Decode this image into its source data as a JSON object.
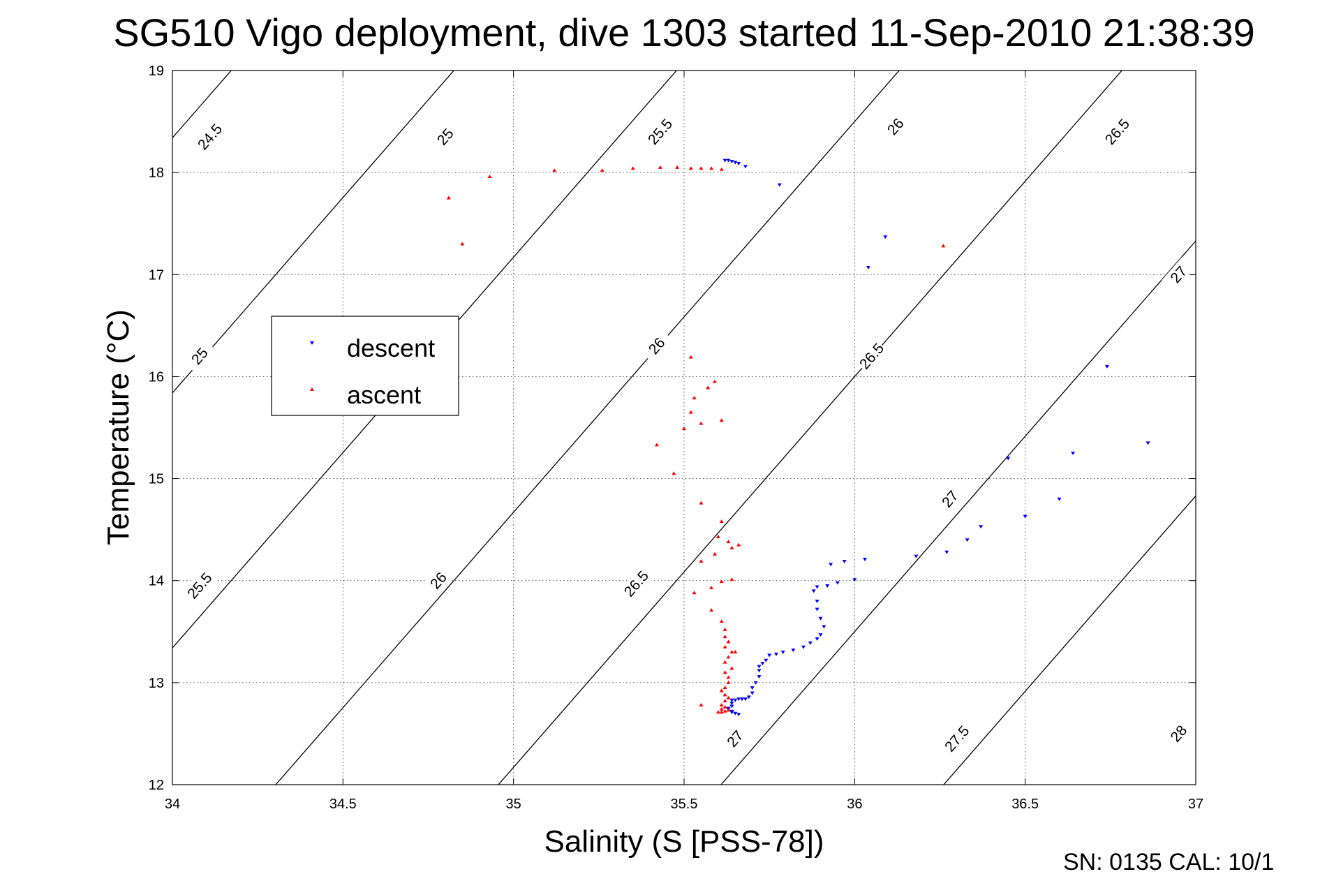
{
  "chart_data": {
    "type": "scatter",
    "title": "SG510 Vigo deployment, dive 1303 started 11-Sep-2010 21:38:39",
    "xlabel": "Salinity (S [PSS-78])",
    "ylabel": "Temperature (°C)",
    "xlim": [
      34,
      37
    ],
    "ylim": [
      12,
      19
    ],
    "x_ticks": [
      "34",
      "34.5",
      "35",
      "35.5",
      "36",
      "36.5",
      "37"
    ],
    "y_ticks": [
      "12",
      "13",
      "14",
      "15",
      "16",
      "17",
      "18",
      "19"
    ],
    "grid": true,
    "legend_position": "left-middle",
    "footer_text": "SN: 0135  CAL: 10/1",
    "density_contours": [
      {
        "sigma": 24.5,
        "labels": [
          {
            "text": "24.5",
            "s": 34.11,
            "t": 18.35
          }
        ]
      },
      {
        "sigma": 25,
        "labels": [
          {
            "text": "25",
            "s": 34.8,
            "t": 18.35
          },
          {
            "text": "25",
            "s": 34.08,
            "t": 16.2
          }
        ]
      },
      {
        "sigma": 25.5,
        "labels": [
          {
            "text": "25.5",
            "s": 35.43,
            "t": 18.4
          },
          {
            "text": "25.5",
            "s": 34.08,
            "t": 13.95
          }
        ]
      },
      {
        "sigma": 26,
        "labels": [
          {
            "text": "26",
            "s": 36.12,
            "t": 18.45
          },
          {
            "text": "26",
            "s": 35.42,
            "t": 16.3
          },
          {
            "text": "26",
            "s": 34.78,
            "t": 14.0
          }
        ]
      },
      {
        "sigma": 26.5,
        "labels": [
          {
            "text": "26.5",
            "s": 36.77,
            "t": 18.4
          },
          {
            "text": "26.5",
            "s": 36.05,
            "t": 16.2
          },
          {
            "text": "26.5",
            "s": 35.36,
            "t": 13.97
          }
        ]
      },
      {
        "sigma": 27,
        "labels": [
          {
            "text": "27",
            "s": 36.95,
            "t": 17.0
          },
          {
            "text": "27",
            "s": 36.28,
            "t": 14.8
          },
          {
            "text": "27",
            "s": 35.65,
            "t": 12.45
          }
        ]
      },
      {
        "sigma": 27.5,
        "labels": [
          {
            "text": "27.5",
            "s": 36.3,
            "t": 12.45
          }
        ]
      },
      {
        "sigma": 28,
        "labels": [
          {
            "text": "28",
            "s": 36.95,
            "t": 12.5
          }
        ]
      }
    ],
    "series": [
      {
        "name": "descent",
        "color": "#0000ff",
        "marker": "triangle-down",
        "points": [
          [
            35.62,
            18.12
          ],
          [
            35.63,
            18.12
          ],
          [
            35.64,
            18.11
          ],
          [
            35.65,
            18.1
          ],
          [
            35.66,
            18.09
          ],
          [
            35.68,
            18.06
          ],
          [
            35.78,
            17.88
          ],
          [
            36.09,
            17.37
          ],
          [
            36.04,
            17.07
          ],
          [
            36.74,
            16.1
          ],
          [
            36.86,
            15.35
          ],
          [
            36.64,
            15.25
          ],
          [
            36.45,
            15.2
          ],
          [
            36.6,
            14.8
          ],
          [
            36.5,
            14.63
          ],
          [
            36.37,
            14.53
          ],
          [
            36.33,
            14.4
          ],
          [
            36.27,
            14.28
          ],
          [
            36.18,
            14.24
          ],
          [
            36.03,
            14.21
          ],
          [
            35.97,
            14.19
          ],
          [
            35.93,
            14.16
          ],
          [
            36.0,
            14.01
          ],
          [
            35.95,
            13.98
          ],
          [
            35.92,
            13.95
          ],
          [
            35.89,
            13.94
          ],
          [
            35.88,
            13.9
          ],
          [
            35.89,
            13.8
          ],
          [
            35.89,
            13.72
          ],
          [
            35.9,
            13.63
          ],
          [
            35.91,
            13.55
          ],
          [
            35.9,
            13.47
          ],
          [
            35.89,
            13.43
          ],
          [
            35.87,
            13.39
          ],
          [
            35.85,
            13.35
          ],
          [
            35.82,
            13.32
          ],
          [
            35.79,
            13.3
          ],
          [
            35.77,
            13.28
          ],
          [
            35.75,
            13.27
          ],
          [
            35.74,
            13.22
          ],
          [
            35.73,
            13.19
          ],
          [
            35.72,
            13.16
          ],
          [
            35.72,
            13.12
          ],
          [
            35.72,
            13.06
          ],
          [
            35.71,
            13.0
          ],
          [
            35.7,
            12.95
          ],
          [
            35.7,
            12.9
          ],
          [
            35.69,
            12.86
          ],
          [
            35.68,
            12.84
          ],
          [
            35.67,
            12.84
          ],
          [
            35.66,
            12.84
          ],
          [
            35.65,
            12.83
          ],
          [
            35.64,
            12.83
          ],
          [
            35.64,
            12.8
          ],
          [
            35.64,
            12.77
          ],
          [
            35.63,
            12.75
          ],
          [
            35.64,
            12.72
          ],
          [
            35.65,
            12.7
          ],
          [
            35.66,
            12.69
          ],
          [
            35.64,
            12.71
          ],
          [
            35.63,
            12.74
          ]
        ]
      },
      {
        "name": "ascent",
        "color": "#ff0000",
        "marker": "triangle-up",
        "points": [
          [
            34.81,
            17.75
          ],
          [
            34.85,
            17.3
          ],
          [
            34.93,
            17.96
          ],
          [
            35.12,
            18.02
          ],
          [
            35.26,
            18.02
          ],
          [
            35.35,
            18.04
          ],
          [
            35.43,
            18.05
          ],
          [
            35.48,
            18.05
          ],
          [
            35.52,
            18.04
          ],
          [
            35.55,
            18.04
          ],
          [
            35.58,
            18.04
          ],
          [
            35.61,
            18.03
          ],
          [
            36.26,
            17.28
          ],
          [
            35.52,
            16.19
          ],
          [
            35.59,
            15.95
          ],
          [
            35.57,
            15.89
          ],
          [
            35.53,
            15.79
          ],
          [
            35.52,
            15.65
          ],
          [
            35.61,
            15.57
          ],
          [
            35.55,
            15.54
          ],
          [
            35.5,
            15.49
          ],
          [
            35.42,
            15.33
          ],
          [
            35.47,
            15.05
          ],
          [
            35.55,
            14.76
          ],
          [
            35.61,
            14.58
          ],
          [
            35.6,
            14.43
          ],
          [
            35.63,
            14.38
          ],
          [
            35.66,
            14.35
          ],
          [
            35.64,
            14.32
          ],
          [
            35.59,
            14.26
          ],
          [
            35.55,
            14.19
          ],
          [
            35.64,
            14.01
          ],
          [
            35.61,
            13.99
          ],
          [
            35.58,
            13.93
          ],
          [
            35.53,
            13.88
          ],
          [
            35.58,
            13.71
          ],
          [
            35.61,
            13.6
          ],
          [
            35.62,
            13.52
          ],
          [
            35.62,
            13.45
          ],
          [
            35.63,
            13.4
          ],
          [
            35.62,
            13.35
          ],
          [
            35.64,
            13.3
          ],
          [
            35.65,
            13.3
          ],
          [
            35.63,
            13.25
          ],
          [
            35.62,
            13.2
          ],
          [
            35.64,
            13.14
          ],
          [
            35.62,
            13.1
          ],
          [
            35.63,
            13.05
          ],
          [
            35.63,
            13.0
          ],
          [
            35.62,
            12.95
          ],
          [
            35.61,
            12.92
          ],
          [
            35.62,
            12.88
          ],
          [
            35.63,
            12.85
          ],
          [
            35.62,
            12.82
          ],
          [
            35.61,
            12.78
          ],
          [
            35.55,
            12.78
          ],
          [
            35.62,
            12.76
          ],
          [
            35.61,
            12.74
          ],
          [
            35.62,
            12.72
          ],
          [
            35.61,
            12.71
          ],
          [
            35.6,
            12.71
          ],
          [
            35.63,
            12.73
          ]
        ]
      }
    ]
  }
}
